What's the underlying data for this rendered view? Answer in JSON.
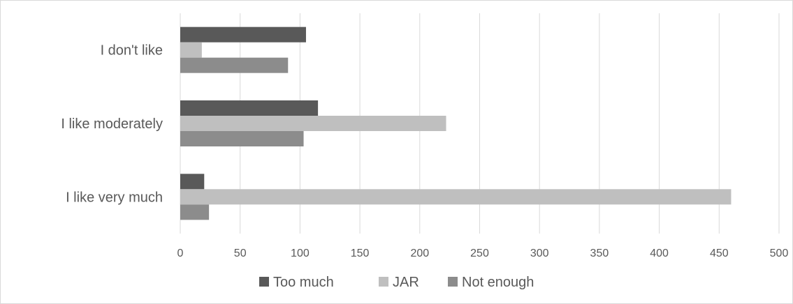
{
  "chart_data": {
    "type": "bar",
    "orientation": "horizontal",
    "categories": [
      "I like very much",
      "I like moderately",
      "I don't like"
    ],
    "series": [
      {
        "name": "Too much",
        "color": "#595959",
        "values": [
          20,
          115,
          105
        ]
      },
      {
        "name": "JAR",
        "color": "#bfbfbf",
        "values": [
          460,
          222,
          18
        ]
      },
      {
        "name": "Not enough",
        "color": "#8c8c8c",
        "values": [
          24,
          103,
          90
        ]
      }
    ],
    "title": "",
    "xlabel": "",
    "ylabel": "",
    "xlim": [
      0,
      500
    ],
    "xticks": [
      "0",
      "50",
      "100",
      "150",
      "200",
      "250",
      "300",
      "350",
      "400",
      "450",
      "500"
    ],
    "grid": true,
    "legend": "bottom"
  }
}
